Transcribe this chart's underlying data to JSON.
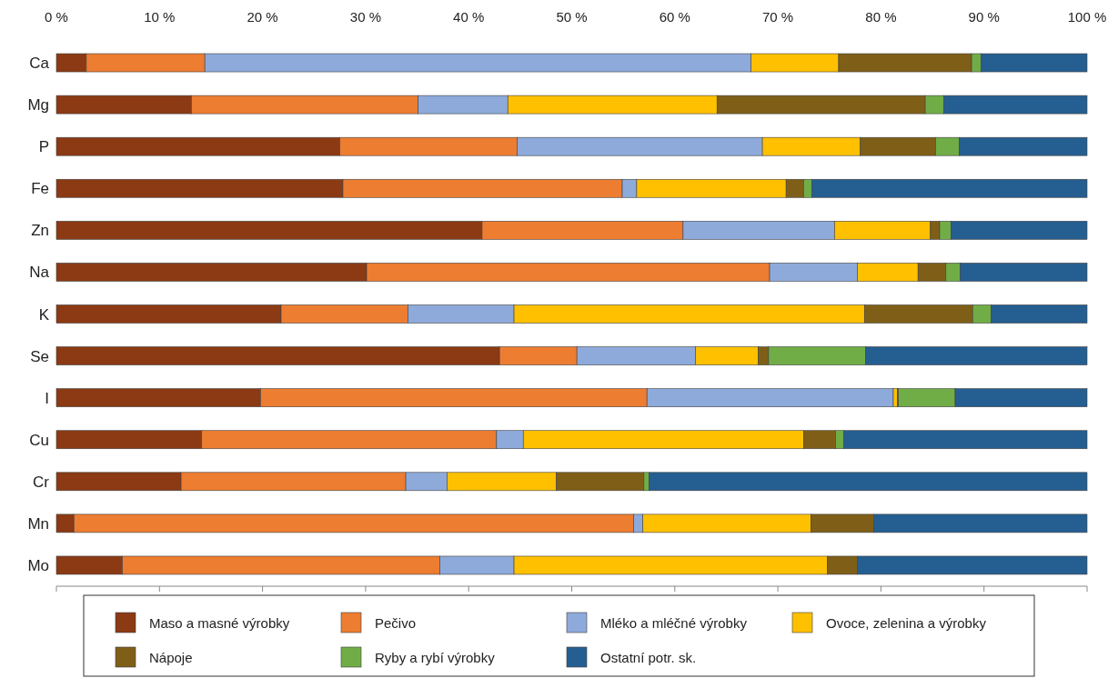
{
  "chart_data": {
    "type": "bar",
    "orientation": "horizontal",
    "stacked": true,
    "categories": [
      "Ca",
      "Mg",
      "P",
      "Fe",
      "Zn",
      "Na",
      "K",
      "Se",
      "I",
      "Cu",
      "Cr",
      "Mn",
      "Mo"
    ],
    "xlim": [
      0,
      100
    ],
    "xticks": [
      {
        "value": 0,
        "label": "0 %"
      },
      {
        "value": 10,
        "label": "10 %"
      },
      {
        "value": 20,
        "label": "20 %"
      },
      {
        "value": 30,
        "label": "30 %"
      },
      {
        "value": 40,
        "label": "40 %"
      },
      {
        "value": 50,
        "label": "50 %"
      },
      {
        "value": 60,
        "label": "60 %"
      },
      {
        "value": 70,
        "label": "70 %"
      },
      {
        "value": 80,
        "label": "80 %"
      },
      {
        "value": 90,
        "label": "90 %"
      },
      {
        "value": 100,
        "label": "100 %"
      }
    ],
    "grid": false,
    "legend": "bottom",
    "series": [
      {
        "name": "Maso a masné výrobky",
        "color": "#8b3a14",
        "values": [
          2.9,
          13.1,
          27.5,
          27.8,
          41.3,
          30.1,
          21.8,
          43.0,
          19.8,
          14.1,
          12.1,
          1.7,
          6.4
        ]
      },
      {
        "name": "Pečivo",
        "color": "#ed7d31",
        "values": [
          11.5,
          22.0,
          17.2,
          27.1,
          19.5,
          39.1,
          12.3,
          7.5,
          37.5,
          28.6,
          21.8,
          54.3,
          30.8
        ]
      },
      {
        "name": "Mléko a mléčné výrobky",
        "color": "#8eaadb",
        "values": [
          53.0,
          8.7,
          23.8,
          1.4,
          14.7,
          8.5,
          10.3,
          11.5,
          23.9,
          2.6,
          4.0,
          0.9,
          7.2
        ]
      },
      {
        "name": "Ovoce, zelenina a výrobky",
        "color": "#ffc000",
        "values": [
          8.5,
          20.3,
          9.5,
          14.5,
          9.3,
          5.9,
          34.0,
          6.1,
          0.4,
          27.2,
          10.6,
          16.3,
          30.4
        ]
      },
      {
        "name": "Nápoje",
        "color": "#7f5f17",
        "values": [
          12.9,
          20.2,
          7.3,
          1.7,
          0.9,
          2.7,
          10.5,
          1.0,
          0.1,
          3.1,
          8.5,
          6.1,
          2.9
        ]
      },
      {
        "name": "Ryby a rybí výrobky",
        "color": "#70ad47",
        "values": [
          0.9,
          1.8,
          2.3,
          0.8,
          1.1,
          1.4,
          1.8,
          9.4,
          5.5,
          0.8,
          0.5,
          0,
          0
        ]
      },
      {
        "name": "Ostatní potr. sk.",
        "color": "#255e91",
        "values": [
          10.3,
          13.9,
          12.4,
          26.7,
          13.2,
          12.3,
          9.3,
          21.5,
          12.8,
          23.6,
          42.5,
          20.7,
          22.3
        ]
      }
    ]
  }
}
